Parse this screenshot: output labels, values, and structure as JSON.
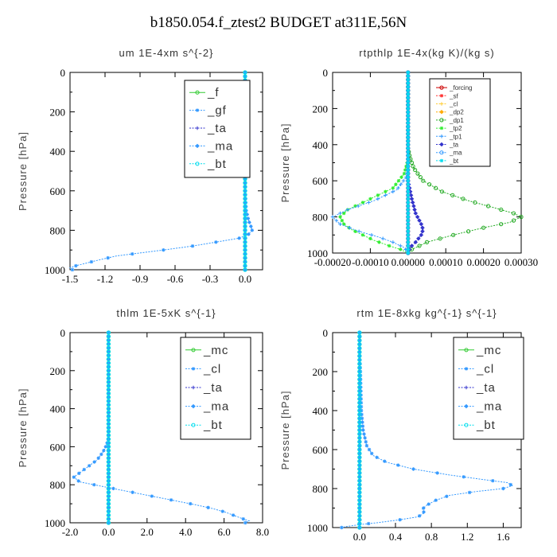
{
  "page": {
    "title": "b1850.054.f_ztest2  BUDGET at311E,56N"
  },
  "chart_data": [
    {
      "type": "line",
      "title": "um   1E-4xm s^{-2}",
      "ylabel": "Pressure [hPa]",
      "xlim": [
        -1.5,
        0.15
      ],
      "ylim": [
        1000,
        0
      ],
      "xticks": [
        -1.5,
        -1.2,
        -0.9,
        -0.6,
        -0.3,
        0.0
      ],
      "xtick_labels": [
        "-1.5",
        "-1.2",
        "-0.9",
        "-0.6",
        "-0.3",
        "0.0"
      ],
      "yticks": [
        0,
        200,
        400,
        600,
        800,
        1000
      ],
      "ytick_labels": [
        "0",
        "200",
        "400",
        "600",
        "800",
        "1000"
      ],
      "legend_style": "large",
      "series": [
        {
          "name": "_f",
          "color": "#33cc33",
          "points": [
            [
              0,
              0
            ],
            [
              0,
              1000
            ]
          ]
        },
        {
          "name": "_gf",
          "color": "#3399ff",
          "points": [
            [
              0,
              0
            ],
            [
              0,
              600
            ],
            [
              0.005,
              650
            ],
            [
              0.01,
              700
            ],
            [
              0.03,
              750
            ],
            [
              0.05,
              780
            ],
            [
              0.06,
              800
            ],
            [
              0.03,
              820
            ],
            [
              -0.05,
              840
            ],
            [
              -0.25,
              860
            ],
            [
              -0.45,
              880
            ],
            [
              -0.7,
              900
            ],
            [
              -0.9,
              915
            ],
            [
              -1.1,
              930
            ],
            [
              -1.25,
              950
            ],
            [
              -1.35,
              965
            ],
            [
              -1.45,
              980
            ],
            [
              -1.5,
              990
            ],
            [
              -1.48,
              1000
            ]
          ]
        },
        {
          "name": "_ta",
          "color": "#3333cc",
          "points": [
            [
              0,
              0
            ],
            [
              0,
              1000
            ]
          ]
        },
        {
          "name": "_ma",
          "color": "#3399ff",
          "points": [
            [
              0,
              0
            ],
            [
              0,
              1000
            ]
          ]
        },
        {
          "name": "_bt",
          "color": "#00ddee",
          "points": [
            [
              0,
              0
            ],
            [
              0,
              1000
            ]
          ]
        }
      ]
    },
    {
      "type": "line",
      "title": "rtpthlp   1E-4x(kg K)/(kg s)",
      "ylabel": "Pressure [hPa]",
      "xlim": [
        -0.0002,
        0.0003
      ],
      "ylim": [
        1000,
        0
      ],
      "xticks": [
        -0.0002,
        -0.0001,
        0.0,
        0.0001,
        0.0002,
        0.0003
      ],
      "xtick_labels": [
        "-0.00020",
        "-0.00010",
        "0.00000",
        "0.00010",
        "0.00020",
        "0.00030"
      ],
      "yticks": [
        0,
        200,
        400,
        600,
        800,
        1000
      ],
      "ytick_labels": [
        "0",
        "200",
        "400",
        "600",
        "800",
        "1000"
      ],
      "legend_style": "small",
      "series": [
        {
          "name": "_forcing",
          "color": "#cc0000",
          "points": [
            [
              0,
              0
            ],
            [
              0,
              1000
            ]
          ]
        },
        {
          "name": "_sf",
          "color": "#ff3333",
          "points": [
            [
              0,
              0
            ],
            [
              0,
              1000
            ]
          ]
        },
        {
          "name": "_cl",
          "color": "#ffcc33",
          "points": [
            [
              0,
              0
            ],
            [
              0,
              1000
            ]
          ]
        },
        {
          "name": "_dp2",
          "color": "#ffaa00",
          "points": [
            [
              0,
              0
            ],
            [
              0,
              1000
            ]
          ]
        },
        {
          "name": "_dp1",
          "color": "#22aa22",
          "points": [
            [
              0,
              0
            ],
            [
              0,
              420
            ],
            [
              5e-06,
              470
            ],
            [
              1.5e-05,
              530
            ],
            [
              4e-05,
              600
            ],
            [
              9e-05,
              660
            ],
            [
              0.00016,
              710
            ],
            [
              0.00023,
              750
            ],
            [
              0.00028,
              780
            ],
            [
              0.0003,
              800
            ],
            [
              0.00027,
              830
            ],
            [
              0.0002,
              860
            ],
            [
              0.00012,
              900
            ],
            [
              5e-05,
              940
            ],
            [
              1e-05,
              980
            ],
            [
              0,
              1000
            ]
          ]
        },
        {
          "name": "_tp2",
          "color": "#33ee33",
          "points": [
            [
              0,
              0
            ],
            [
              0,
              480
            ],
            [
              -1e-05,
              560
            ],
            [
              -4e-05,
              640
            ],
            [
              -0.0001,
              700
            ],
            [
              -0.00016,
              760
            ],
            [
              -0.00018,
              800
            ],
            [
              -0.00017,
              840
            ],
            [
              -0.00015,
              870
            ],
            [
              -0.00012,
              900
            ],
            [
              -9e-05,
              930
            ],
            [
              -5e-05,
              960
            ],
            [
              -2e-05,
              980
            ],
            [
              0,
              1000
            ]
          ]
        },
        {
          "name": "_tp1",
          "color": "#3399ff",
          "points": [
            [
              0,
              0
            ],
            [
              0,
              500
            ],
            [
              -5e-06,
              580
            ],
            [
              -3e-05,
              650
            ],
            [
              -9e-05,
              710
            ],
            [
              -0.00016,
              760
            ],
            [
              -0.0002,
              800
            ],
            [
              -0.00018,
              840
            ],
            [
              -0.00013,
              880
            ],
            [
              -8e-05,
              910
            ],
            [
              -4e-05,
              940
            ],
            [
              -1e-05,
              970
            ],
            [
              0,
              1000
            ]
          ]
        },
        {
          "name": "_ta",
          "color": "#3333cc",
          "points": [
            [
              0,
              0
            ],
            [
              0,
              600
            ],
            [
              1e-05,
              700
            ],
            [
              2e-05,
              780
            ],
            [
              3.5e-05,
              840
            ],
            [
              4e-05,
              870
            ],
            [
              3.5e-05,
              900
            ],
            [
              2e-05,
              940
            ],
            [
              5e-06,
              970
            ],
            [
              0,
              1000
            ]
          ]
        },
        {
          "name": "_ma",
          "color": "#3399ff",
          "points": [
            [
              0,
              0
            ],
            [
              0,
              1000
            ]
          ]
        },
        {
          "name": "_bt",
          "color": "#00ddee",
          "points": [
            [
              0,
              0
            ],
            [
              0,
              1000
            ]
          ]
        }
      ]
    },
    {
      "type": "line",
      "title": "thlm   1E-5xK s^{-1}",
      "ylabel": "Pressure [hPa]",
      "xlim": [
        -2.0,
        8.0
      ],
      "ylim": [
        1000,
        0
      ],
      "xticks": [
        -2.0,
        0.0,
        2.0,
        4.0,
        6.0,
        8.0
      ],
      "xtick_labels": [
        "-2.0",
        "0.0",
        "2.0",
        "4.0",
        "6.0",
        "8.0"
      ],
      "yticks": [
        0,
        200,
        400,
        600,
        800,
        1000
      ],
      "ytick_labels": [
        "0",
        "200",
        "400",
        "600",
        "800",
        "1000"
      ],
      "legend_style": "large",
      "series": [
        {
          "name": "_mc",
          "color": "#33cc33",
          "points": [
            [
              0,
              0
            ],
            [
              0,
              1000
            ]
          ]
        },
        {
          "name": "_cl",
          "color": "#3399ff",
          "points": [
            [
              0,
              0
            ],
            [
              0,
              550
            ],
            [
              -0.1,
              590
            ],
            [
              -0.3,
              630
            ],
            [
              -0.6,
              670
            ],
            [
              -1.0,
              700
            ],
            [
              -1.4,
              730
            ],
            [
              -1.8,
              760
            ],
            [
              -1.5,
              785
            ],
            [
              -0.5,
              805
            ],
            [
              0.5,
              825
            ],
            [
              1.5,
              845
            ],
            [
              2.5,
              865
            ],
            [
              3.5,
              885
            ],
            [
              4.5,
              905
            ],
            [
              5.4,
              925
            ],
            [
              6.1,
              945
            ],
            [
              6.6,
              965
            ],
            [
              7.0,
              980
            ],
            [
              7.3,
              990
            ],
            [
              7.1,
              1000
            ]
          ]
        },
        {
          "name": "_ta",
          "color": "#3333cc",
          "points": [
            [
              0,
              0
            ],
            [
              0,
              1000
            ]
          ]
        },
        {
          "name": "_ma",
          "color": "#3399ff",
          "points": [
            [
              0,
              0
            ],
            [
              0,
              1000
            ]
          ]
        },
        {
          "name": "_bt",
          "color": "#00ddee",
          "points": [
            [
              0,
              0
            ],
            [
              0,
              1000
            ]
          ]
        }
      ]
    },
    {
      "type": "line",
      "title": "rtm   1E-8xkg kg^{-1} s^{-1}",
      "ylabel": "Pressure [hPa]",
      "xlim": [
        -0.3,
        1.8
      ],
      "ylim": [
        1000,
        0
      ],
      "xticks": [
        0.0,
        0.4,
        0.8,
        1.2,
        1.6
      ],
      "xtick_labels": [
        "0.0",
        "0.4",
        "0.8",
        "1.2",
        "1.6"
      ],
      "yticks": [
        0,
        200,
        400,
        600,
        800,
        1000
      ],
      "ytick_labels": [
        "0",
        "200",
        "400",
        "600",
        "800",
        "1000"
      ],
      "legend_style": "large",
      "series": [
        {
          "name": "_mc",
          "color": "#33cc33",
          "points": [
            [
              0,
              0
            ],
            [
              0,
              1000
            ]
          ]
        },
        {
          "name": "_cl",
          "color": "#3399ff",
          "points": [
            [
              0,
              0
            ],
            [
              0,
              100
            ],
            [
              0.01,
              200
            ],
            [
              0.015,
              300
            ],
            [
              0.02,
              400
            ],
            [
              0.04,
              500
            ],
            [
              0.08,
              580
            ],
            [
              0.15,
              630
            ],
            [
              0.3,
              665
            ],
            [
              0.6,
              700
            ],
            [
              1.0,
              730
            ],
            [
              1.4,
              755
            ],
            [
              1.65,
              770
            ],
            [
              1.7,
              785
            ],
            [
              1.6,
              800
            ],
            [
              1.3,
              815
            ],
            [
              1.0,
              835
            ],
            [
              0.85,
              860
            ],
            [
              0.75,
              885
            ],
            [
              0.7,
              905
            ],
            [
              0.72,
              925
            ],
            [
              0.65,
              945
            ],
            [
              0.45,
              960
            ],
            [
              0.2,
              975
            ],
            [
              0.0,
              985
            ],
            [
              -0.15,
              995
            ],
            [
              -0.2,
              1000
            ]
          ]
        },
        {
          "name": "_ta",
          "color": "#3333cc",
          "points": [
            [
              0,
              0
            ],
            [
              0,
              1000
            ]
          ]
        },
        {
          "name": "_ma",
          "color": "#3399ff",
          "points": [
            [
              0,
              0
            ],
            [
              0,
              1000
            ]
          ]
        },
        {
          "name": "_bt",
          "color": "#00ddee",
          "points": [
            [
              0,
              0
            ],
            [
              0,
              1000
            ]
          ]
        }
      ]
    }
  ]
}
